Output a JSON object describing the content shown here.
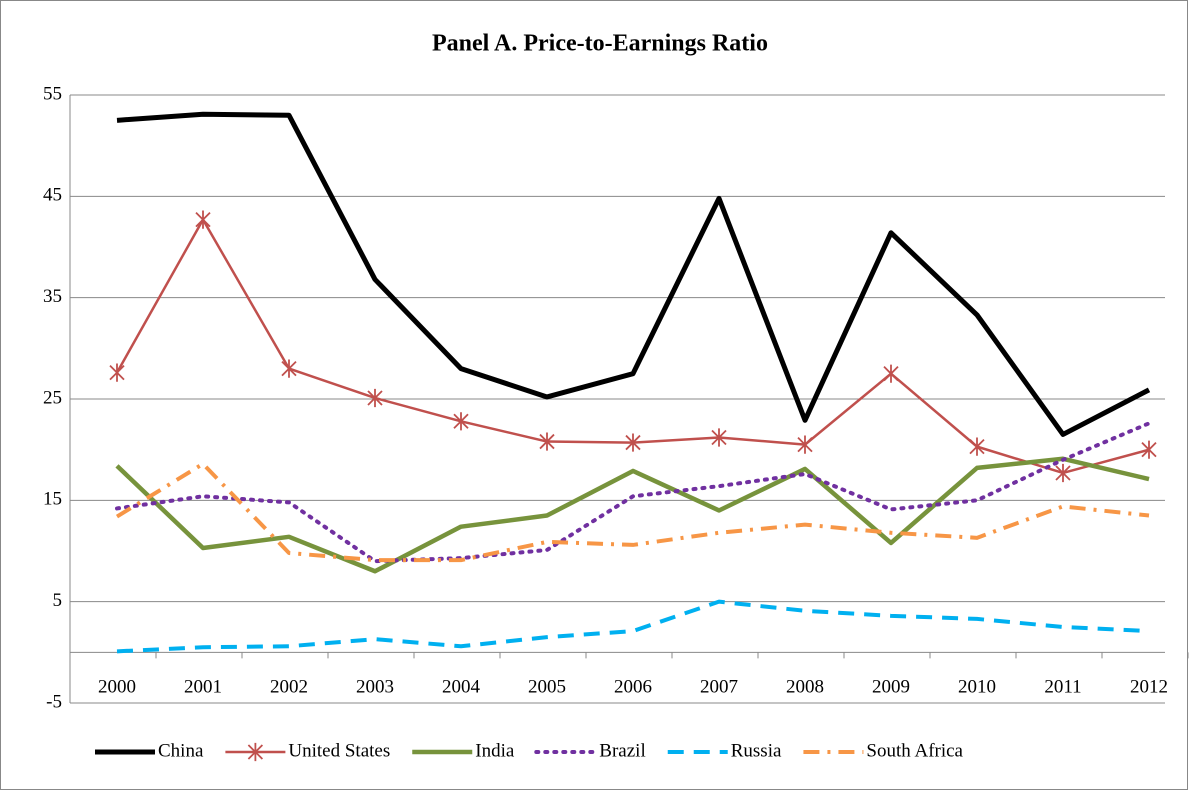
{
  "chart_data": {
    "type": "line",
    "title": "Panel A. Price-to-Earnings Ratio",
    "categories": [
      "2000",
      "2001",
      "2002",
      "2003",
      "2004",
      "2005",
      "2006",
      "2007",
      "2008",
      "2009",
      "2010",
      "2011",
      "2012"
    ],
    "series": [
      {
        "name": "China",
        "color": "#000000",
        "line_style": "solid",
        "width": 5,
        "values": [
          52.5,
          53.1,
          53.0,
          36.8,
          28.0,
          25.2,
          27.5,
          44.8,
          22.9,
          41.4,
          33.3,
          21.5,
          25.9
        ]
      },
      {
        "name": "United States",
        "color": "#c0504d",
        "line_style": "solid",
        "width": 2.5,
        "marker": "asterisk",
        "values": [
          27.6,
          42.7,
          28.0,
          25.1,
          22.8,
          20.8,
          20.7,
          21.2,
          20.5,
          27.5,
          20.3,
          17.7,
          20.0
        ]
      },
      {
        "name": "India",
        "color": "#77933c",
        "line_style": "solid",
        "width": 4.5,
        "values": [
          18.4,
          10.3,
          11.4,
          8.0,
          12.4,
          13.5,
          17.9,
          14.0,
          18.1,
          10.8,
          18.2,
          19.1,
          17.1
        ]
      },
      {
        "name": "Brazil",
        "color": "#7030a0",
        "line_style": "dotted",
        "width": 4,
        "values": [
          14.2,
          15.4,
          14.8,
          9.0,
          9.3,
          10.1,
          15.4,
          16.4,
          17.6,
          14.1,
          15.0,
          19.0,
          22.6
        ]
      },
      {
        "name": "Russia",
        "color": "#00b0f0",
        "line_style": "dashed",
        "width": 4,
        "values": [
          0.1,
          0.5,
          0.6,
          1.3,
          0.6,
          1.5,
          2.1,
          5.0,
          4.1,
          3.6,
          3.3,
          2.5,
          2.1
        ]
      },
      {
        "name": "South Africa",
        "color": "#f79646",
        "line_style": "dashdot",
        "width": 4,
        "values": [
          13.4,
          18.6,
          9.8,
          9.1,
          9.1,
          10.9,
          10.6,
          11.8,
          12.6,
          11.8,
          11.3,
          14.4,
          13.5
        ]
      }
    ],
    "ylim": [
      -5,
      55
    ],
    "yticks": [
      -5,
      5,
      15,
      25,
      35,
      45,
      55
    ],
    "grid": true,
    "legend": "bottom"
  }
}
